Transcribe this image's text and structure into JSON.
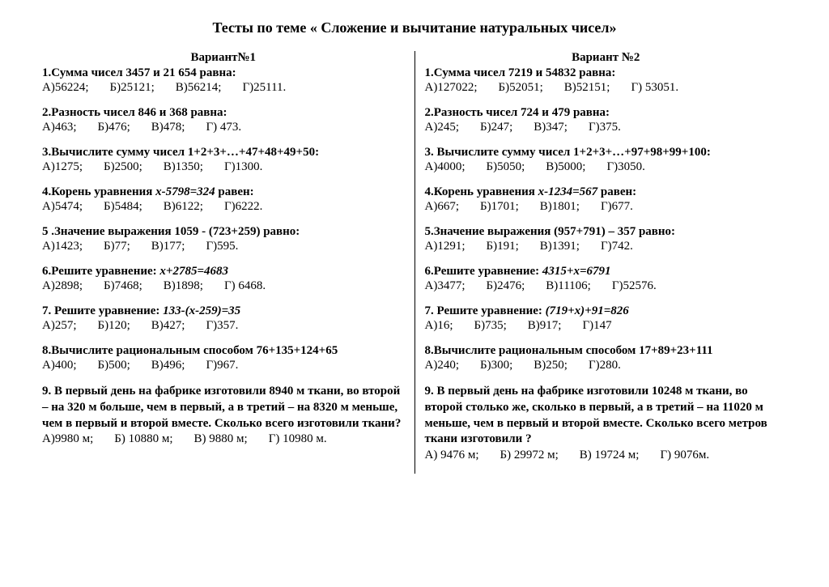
{
  "title": "Тесты по теме « Сложение и вычитание натуральных чисел»",
  "variants": [
    {
      "name": "Вариант№1",
      "questions": [
        {
          "num": "1.",
          "text": "Сумма чисел 3457 и 21 654 равна:",
          "opts": [
            "А)56224;",
            "Б)25121;",
            "В)56214;",
            "Г)25111."
          ]
        },
        {
          "num": "2.",
          "text": "Разность чисел 846 и 368 равна:",
          "opts": [
            "А)463;",
            "Б)476;",
            "В)478;",
            "Г) 473."
          ]
        },
        {
          "num": "3.",
          "text": "Вычислите сумму чисел 1+2+3+…+47+48+49+50:",
          "opts": [
            "А)1275;",
            "Б)2500;",
            "В)1350;",
            "Г)1300."
          ]
        },
        {
          "num": "4.",
          "text": "Корень уравнения ",
          "italic": "х-5798=324",
          "after": " равен:",
          "opts": [
            "А)5474;",
            "Б)5484;",
            "В)6122;",
            "Г)6222."
          ]
        },
        {
          "num": "5 .",
          "text": "Значение выражения 1059 - (723+259) равно:",
          "opts": [
            "А)1423;",
            "Б)77;",
            "В)177;",
            "Г)595."
          ]
        },
        {
          "num": "6.",
          "text": "Решите уравнение: ",
          "italic": "х+2785=4683",
          "opts": [
            "А)2898;",
            "Б)7468;",
            "В)1898;",
            "Г) 6468."
          ]
        },
        {
          "num": "7.",
          "text": " Решите уравнение: ",
          "italic": "133-(х-259)=35",
          "opts": [
            "А)257;",
            "Б)120;",
            "В)427;",
            "Г)357."
          ]
        },
        {
          "num": "8.",
          "text": "Вычислите рациональным способом   76+135+124+65",
          "opts": [
            "А)400;",
            "Б)500;",
            "В)496;",
            "Г)967."
          ]
        },
        {
          "num": "9.",
          "word": "В первый день на фабрике изготовили 8940 м ткани, во второй – на 320 м больше, чем в первый, а в третий – на 8320 м меньше, чем в первый и второй вместе. Сколько всего изготовили ткани?",
          "opts": [
            "А)9980 м;",
            "Б) 10880 м;",
            "В) 9880 м;",
            "Г) 10980 м."
          ]
        }
      ]
    },
    {
      "name": "Вариант №2",
      "questions": [
        {
          "num": "1.",
          "text": "Сумма чисел  7219 и 54832 равна:",
          "opts": [
            "А)127022;",
            "Б)52051;",
            "В)52151;",
            "Г) 53051."
          ]
        },
        {
          "num": "2.",
          "text": "Разность чисел 724 и 479 равна:",
          "opts": [
            "А)245;",
            "Б)247;",
            "В)347;",
            "Г)375."
          ]
        },
        {
          "num": "3.",
          "text": " Вычислите сумму чисел 1+2+3+…+97+98+99+100:",
          "opts": [
            "А)4000;",
            "Б)5050;",
            "В)5000;",
            "Г)3050."
          ]
        },
        {
          "num": "4.",
          "text": "Корень уравнения ",
          "italic": "х-1234=567",
          "after": " равен:",
          "opts": [
            "А)667;",
            "Б)1701;",
            "В)1801;",
            "Г)677."
          ]
        },
        {
          "num": "5.",
          "text": "Значение выражения (957+791) – 357 равно:",
          "opts": [
            "А)1291;",
            "Б)191;",
            "В)1391;",
            "Г)742."
          ]
        },
        {
          "num": "6.",
          "text": "Решите уравнение: ",
          "italic": "4315+х=6791",
          "opts": [
            "А)3477;",
            "Б)2476;",
            "В)11106;",
            "Г)52576."
          ]
        },
        {
          "num": "7.",
          "text": " Решите уравнение: ",
          "italic": "(719+х)+91=826",
          "opts": [
            "А)16;",
            "Б)735;",
            "В)917;",
            "Г)147"
          ]
        },
        {
          "num": "8.",
          "text": "Вычислите рациональным способом 17+89+23+111",
          "opts": [
            "А)240;",
            "Б)300;",
            "В)250;",
            "Г)280."
          ]
        },
        {
          "num": "9.",
          "word": "В первый день на фабрике изготовили  10248 м ткани,   во второй столько же, сколько в первый, а в третий – на 11020 м меньше, чем в первый и второй вместе. Сколько всего метров ткани изготовили ?",
          "opts": [
            "А) 9476 м;",
            "Б) 29972 м;",
            "В) 19724 м;",
            "Г) 9076м."
          ]
        }
      ]
    }
  ]
}
